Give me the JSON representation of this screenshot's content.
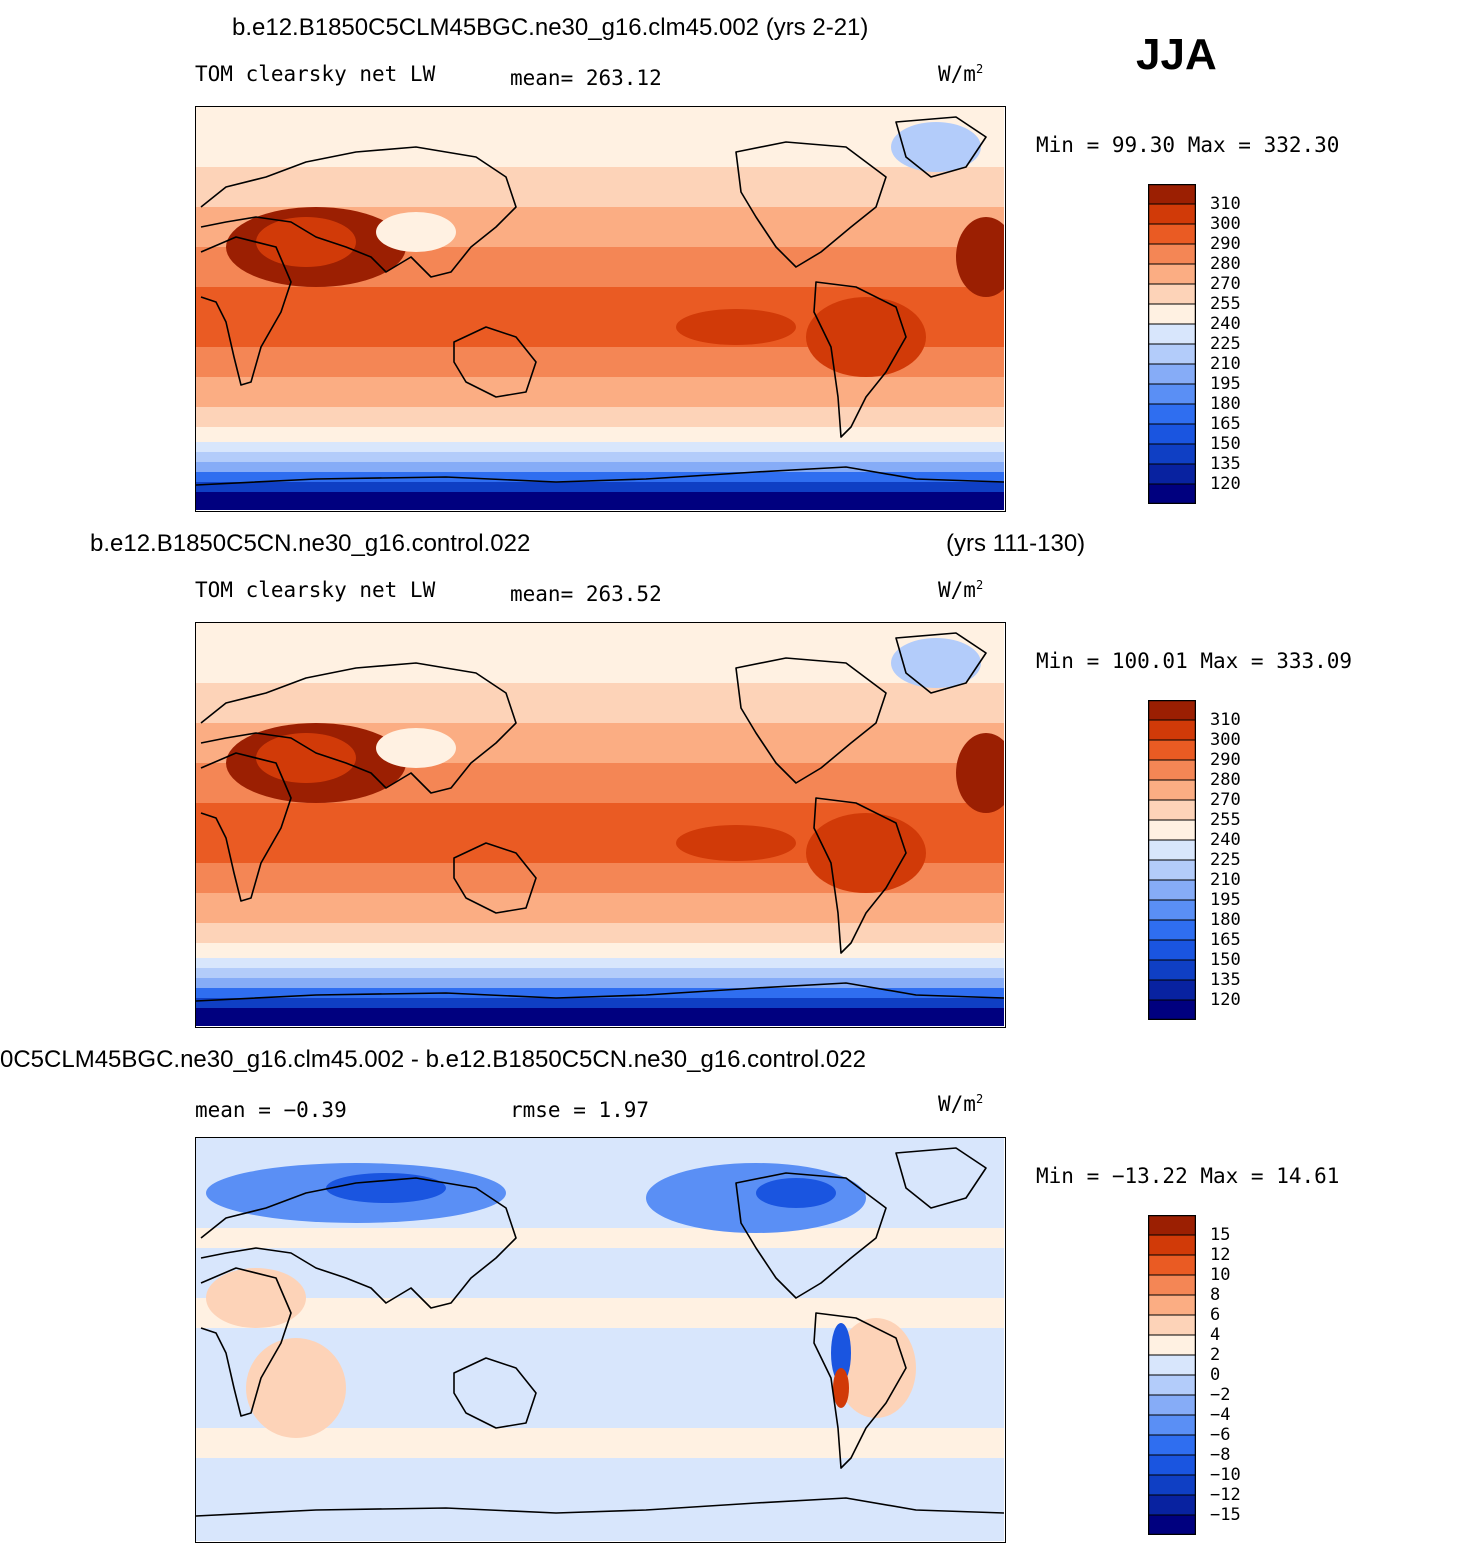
{
  "season": "JJA",
  "panels": [
    {
      "title": "b.e12.B1850C5CLM45BGC.ne30_g16.clm45.002 (yrs 2-21)",
      "title_right": "",
      "variable": "TOM clearsky net LW",
      "stat": "mean= 263.12",
      "units": "W/m",
      "units_sup": "2",
      "minmax": "Min =   99.30 Max = 332.30"
    },
    {
      "title": "b.e12.B1850C5CN.ne30_g16.control.022",
      "title_right": "(yrs 111-130)",
      "variable": "TOM clearsky net LW",
      "stat": "mean= 263.52",
      "units": "W/m",
      "units_sup": "2",
      "minmax": "Min = 100.01 Max = 333.09"
    },
    {
      "title": "0C5CLM45BGC.ne30_g16.clm45.002 - b.e12.B1850C5CN.ne30_g16.control.022",
      "title_right": "",
      "variable": "mean =   −0.39",
      "stat": "rmse =    1.97",
      "units": "W/m",
      "units_sup": "2",
      "minmax": "Min = −13.22 Max =   14.61"
    }
  ],
  "chart_data": [
    {
      "type": "heatmap",
      "title": "b.e12.B1850C5CLM45BGC.ne30_g16.clm45.002 (yrs 2-21)",
      "subtitle": "TOM clearsky net LW",
      "units": "W/m2",
      "mean": 263.12,
      "min": 99.3,
      "max": 332.3,
      "colorbar_levels": [
        120,
        135,
        150,
        165,
        180,
        195,
        210,
        225,
        240,
        255,
        270,
        280,
        290,
        300,
        310
      ],
      "colorbar_colors": [
        "#00007f",
        "#0822a0",
        "#0f3fc4",
        "#1a55e0",
        "#2f6ef0",
        "#5a8ff5",
        "#86acf7",
        "#b3ccfa",
        "#d8e6fc",
        "#fff1e2",
        "#fdd3b8",
        "#fbad83",
        "#f48655",
        "#ea5b23",
        "#d13a08",
        "#9b1f02"
      ],
      "grid": false
    },
    {
      "type": "heatmap",
      "title": "b.e12.B1850C5CN.ne30_g16.control.022",
      "subtitle": "TOM clearsky net LW",
      "units": "W/m2",
      "mean": 263.52,
      "min": 100.01,
      "max": 333.09,
      "colorbar_levels": [
        120,
        135,
        150,
        165,
        180,
        195,
        210,
        225,
        240,
        255,
        270,
        280,
        290,
        300,
        310
      ],
      "colorbar_colors": [
        "#00007f",
        "#0822a0",
        "#0f3fc4",
        "#1a55e0",
        "#2f6ef0",
        "#5a8ff5",
        "#86acf7",
        "#b3ccfa",
        "#d8e6fc",
        "#fff1e2",
        "#fdd3b8",
        "#fbad83",
        "#f48655",
        "#ea5b23",
        "#d13a08",
        "#9b1f02"
      ],
      "grid": false
    },
    {
      "type": "heatmap",
      "title": "0C5CLM45BGC.ne30_g16.clm45.002 - b.e12.B1850C5CN.ne30_g16.control.022",
      "units": "W/m2",
      "mean": -0.39,
      "rmse": 1.97,
      "min": -13.22,
      "max": 14.61,
      "colorbar_levels": [
        -15,
        -12,
        -10,
        -8,
        -6,
        -4,
        -2,
        0,
        2,
        4,
        6,
        8,
        10,
        12,
        15
      ],
      "colorbar_colors": [
        "#00007f",
        "#0822a0",
        "#0f3fc4",
        "#1a55e0",
        "#2f6ef0",
        "#5a8ff5",
        "#86acf7",
        "#b3ccfa",
        "#d8e6fc",
        "#fff1e2",
        "#fdd3b8",
        "#fbad83",
        "#f48655",
        "#ea5b23",
        "#d13a08",
        "#9b1f02"
      ],
      "grid": false
    }
  ]
}
